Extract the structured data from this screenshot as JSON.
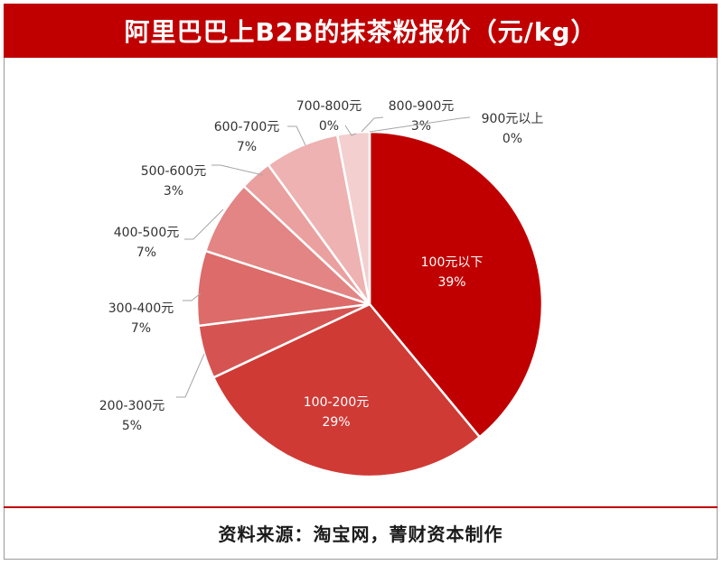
{
  "chart_data": {
    "type": "pie",
    "title": "阿里巴巴上B2B的抹茶粉报价（元/kg）",
    "slices": [
      {
        "label": "100元以下",
        "value": 39,
        "display": "39%",
        "color": "#c00000"
      },
      {
        "label": "100-200元",
        "value": 29,
        "display": "29%",
        "color": "#cf3a35"
      },
      {
        "label": "200-300元",
        "value": 5,
        "display": "5%",
        "color": "#d55452"
      },
      {
        "label": "300-400元",
        "value": 7,
        "display": "7%",
        "color": "#dc6b69"
      },
      {
        "label": "400-500元",
        "value": 7,
        "display": "7%",
        "color": "#e28584"
      },
      {
        "label": "500-600元",
        "value": 3,
        "display": "3%",
        "color": "#e9a09f"
      },
      {
        "label": "600-700元",
        "value": 7,
        "display": "7%",
        "color": "#edb2b1"
      },
      {
        "label": "700-800元",
        "value": 0,
        "display": "0%",
        "color": "#efbcbc"
      },
      {
        "label": "800-900元",
        "value": 3,
        "display": "3%",
        "color": "#f3cfcf"
      },
      {
        "label": "900元以上",
        "value": 0,
        "display": "0%",
        "color": "#f7dede"
      }
    ]
  },
  "footer": "资料来源：淘宝网，菁财资本制作"
}
